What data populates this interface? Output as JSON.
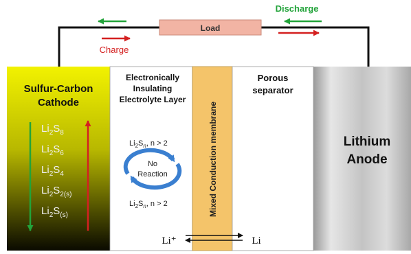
{
  "circuit": {
    "load_label": "Load",
    "discharge_label": "Discharge",
    "charge_label": "Charge"
  },
  "cathode": {
    "title_line1": "Sulfur-Carbon",
    "title_line2": "Cathode",
    "species": [
      {
        "base": "Li",
        "sub1": "2",
        "mid": "S",
        "sub2": "8"
      },
      {
        "base": "Li",
        "sub1": "2",
        "mid": "S",
        "sub2": "6"
      },
      {
        "base": "Li",
        "sub1": "2",
        "mid": "S",
        "sub2": "4"
      },
      {
        "base": "Li",
        "sub1": "2",
        "mid": "S",
        "sub2": "2(s)"
      },
      {
        "base": "Li",
        "sub1": "2",
        "mid": "S",
        "sub2": "(s)"
      }
    ]
  },
  "electrolyte": {
    "title_line1": "Electronically",
    "title_line2": "Insulating",
    "title_line3": "Electrolyte Layer",
    "top_species": {
      "base": "Li",
      "sub1": "2",
      "mid": "S",
      "sub2": "n",
      "rest": ", n > 2"
    },
    "bottom_species": {
      "base": "Li",
      "sub1": "2",
      "mid": "S",
      "sub2": "n",
      "rest": ", n > 2"
    },
    "cycle_line1": "No",
    "cycle_line2": "Reaction"
  },
  "membrane": {
    "label": "Mixed Conduction membrane"
  },
  "separator": {
    "title_line1": "Porous",
    "title_line2": "separator"
  },
  "anode": {
    "title_line1": "Lithium",
    "title_line2": "Anode"
  },
  "ion_transport": {
    "left_label": "Li⁺",
    "right_label": "Li"
  },
  "colors": {
    "discharge": "#22a33a",
    "charge": "#d42020",
    "load_fill": "#f2b4a4",
    "membrane_fill": "#f4c46a",
    "cycle_blue": "#3a7fd0"
  }
}
